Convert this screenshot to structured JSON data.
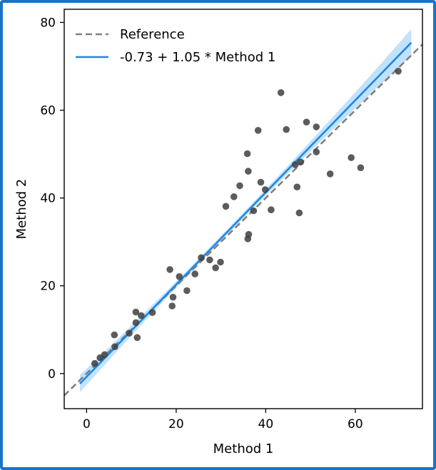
{
  "chart_data": {
    "type": "scatter",
    "xlabel": "Method 1",
    "ylabel": "Method 2",
    "xlim": [
      -5,
      75
    ],
    "ylim": [
      -8,
      83
    ],
    "xticks": [
      0,
      20,
      40,
      60
    ],
    "yticks": [
      0,
      20,
      40,
      60,
      80
    ],
    "legend_position": "top-left",
    "reference_line": {
      "label": "Reference",
      "slope": 1,
      "intercept": 0,
      "color": "#808080",
      "dashed": true
    },
    "fit_line": {
      "label": "-0.73 + 1.05 * Method 1",
      "intercept": -0.73,
      "slope": 1.05,
      "x_range": [
        -1.5,
        72.5
      ],
      "color": "#1e88e5",
      "band_color": "#90caf9"
    },
    "series": [
      {
        "points": [
          [
            1.8,
            2.3
          ],
          [
            3,
            3.6
          ],
          [
            4,
            4.3
          ],
          [
            6.3,
            6.1
          ],
          [
            6.2,
            8.8
          ],
          [
            9.5,
            9.2
          ],
          [
            11,
            14
          ],
          [
            11,
            11.6
          ],
          [
            12.2,
            13.2
          ],
          [
            11.3,
            8.2
          ],
          [
            14.7,
            13.9
          ],
          [
            18.6,
            23.7
          ],
          [
            19.1,
            15.4
          ],
          [
            19.3,
            17.4
          ],
          [
            20.7,
            22.1
          ],
          [
            22.4,
            18.9
          ],
          [
            24.2,
            22.7
          ],
          [
            25.6,
            26.4
          ],
          [
            27.5,
            25.9
          ],
          [
            28.8,
            24.1
          ],
          [
            29.9,
            25.4
          ],
          [
            31.1,
            38.1
          ],
          [
            32.9,
            40.3
          ],
          [
            34.2,
            42.8
          ],
          [
            35.9,
            50.1
          ],
          [
            36.1,
            46.1
          ],
          [
            36,
            30.7
          ],
          [
            36.2,
            31.7
          ],
          [
            37.3,
            37.1
          ],
          [
            38.3,
            55.4
          ],
          [
            38.9,
            43.6
          ],
          [
            39.9,
            41.9
          ],
          [
            41.2,
            37.3
          ],
          [
            43.4,
            64
          ],
          [
            44.6,
            55.6
          ],
          [
            46.6,
            47.6
          ],
          [
            47,
            42.5
          ],
          [
            47.5,
            36.6
          ],
          [
            47.8,
            48.2
          ],
          [
            49.1,
            57.3
          ],
          [
            51.3,
            56.2
          ],
          [
            51.3,
            50.5
          ],
          [
            54.4,
            45.5
          ],
          [
            59.1,
            49.2
          ],
          [
            61.2,
            46.9
          ],
          [
            69.6,
            68.9
          ]
        ]
      }
    ],
    "colors": {
      "points": "#404040",
      "axes": "#000000"
    }
  }
}
